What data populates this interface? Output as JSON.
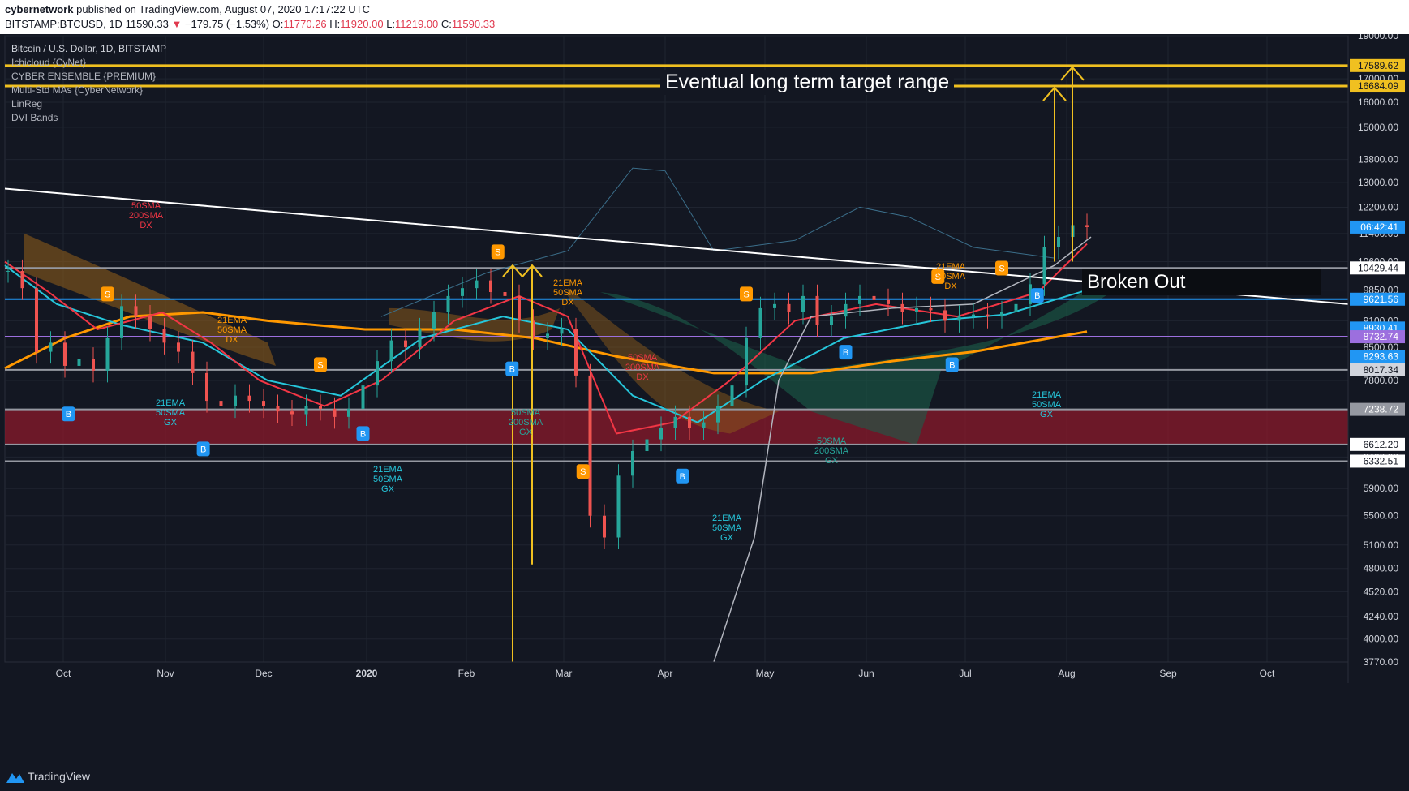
{
  "header": {
    "author": "cybernetwork",
    "published_text": "published on TradingView.com, August 07, 2020 17:17:22 UTC",
    "symbol": "BITSTAMP:BTCUSD, 1D",
    "last": "11590.33",
    "change": "−179.75 (−1.53%)",
    "o_label": "O:",
    "o_value": "11770.26",
    "h_label": "H:",
    "h_value": "11920.00",
    "l_label": "L:",
    "l_value": "11219.00",
    "c_label": "C:",
    "c_value": "11590.33"
  },
  "legend": {
    "title": "Bitcoin / U.S. Dollar, 1D, BITSTAMP",
    "indicators": [
      "Ichicloud {CyNet}",
      "CYBER ENSEMBLE {PREMIUM}",
      "Multi-Std MAs {CyberNetwork}",
      "LinReg",
      "DVI Bands"
    ]
  },
  "annotations": {
    "target_range": "Eventual long term target range",
    "broken_out": "Broken Out"
  },
  "footer": {
    "brand": "TradingView"
  },
  "colors": {
    "background": "#131722",
    "target_line": "#f0c020",
    "trend_line": "#ffffff",
    "blue_level": "#2196f3",
    "purple_level": "#9c6fde",
    "gray_level": "#9598a1",
    "support_zone": "#8b1a2b",
    "cloud_orange": "#8a5a1a",
    "cloud_green": "#1b5e4a",
    "ema21": "#f23645",
    "sma50": "#26c6da",
    "sma200": "#ff9800",
    "up_candle": "#26a69a",
    "down_candle": "#ef5350"
  },
  "chart_data": {
    "type": "candlestick",
    "title": "Bitcoin / U.S. Dollar, 1D, BITSTAMP",
    "y_scale": "log",
    "ylim": [
      3770,
      19000
    ],
    "x_ticks": [
      "Oct",
      "Nov",
      "Dec",
      "2020",
      "Feb",
      "Mar",
      "Apr",
      "May",
      "Jun",
      "Jul",
      "Aug",
      "Sep",
      "Oct"
    ],
    "y_ticks": [
      "19000.00",
      "17000.00",
      "16000.00",
      "15000.00",
      "13800.00",
      "13000.00",
      "12200.00",
      "11400.00",
      "10600.00",
      "9850.00",
      "9100.00",
      "8500.00",
      "7800.00",
      "6400.00",
      "5900.00",
      "5500.00",
      "5100.00",
      "4800.00",
      "4520.00",
      "4240.00",
      "4000.00",
      "3770.00"
    ],
    "price_labels": [
      {
        "text": "17589.62",
        "value": 17589.62,
        "color": "#f0c020"
      },
      {
        "text": "16684.09",
        "value": 16684.09,
        "color": "#f0c020"
      },
      {
        "text": "06:42:41",
        "value": 11590.33,
        "color": "#2196f3"
      },
      {
        "text": "10429.44",
        "value": 10429.44,
        "color": "#ffffff"
      },
      {
        "text": "9621.56",
        "value": 9621.56,
        "color": "#2196f3"
      },
      {
        "text": "8930.41",
        "value": 8930.41,
        "color": "#2196f3"
      },
      {
        "text": "8732.74",
        "value": 8732.74,
        "color": "#9c6fde"
      },
      {
        "text": "8293.63",
        "value": 8293.63,
        "color": "#2196f3"
      },
      {
        "text": "8017.34",
        "value": 8017.34,
        "color": "#d1d4dc"
      },
      {
        "text": "7238.72",
        "value": 7238.72,
        "color": "#9598a1"
      },
      {
        "text": "6612.20",
        "value": 6612.2,
        "color": "#ffffff"
      },
      {
        "text": "6332.51",
        "value": 6332.51,
        "color": "#ffffff"
      }
    ],
    "horizontal_levels": [
      {
        "value": 17589.62,
        "color": "#f0c020"
      },
      {
        "value": 16684.09,
        "color": "#f0c020"
      },
      {
        "value": 10429.44,
        "color": "#9598a1"
      },
      {
        "value": 9621.56,
        "color": "#2196f3"
      },
      {
        "value": 8732.74,
        "color": "#9c6fde"
      },
      {
        "value": 8017.34,
        "color": "#9598a1"
      },
      {
        "value": 7238.72,
        "color": "#9598a1"
      },
      {
        "value": 6612.2,
        "color": "#9598a1"
      },
      {
        "value": 6332.51,
        "color": "#9598a1"
      }
    ],
    "candles": [
      [
        0,
        10350
      ],
      [
        4,
        9900
      ],
      [
        8,
        8400
      ],
      [
        12,
        8600
      ],
      [
        16,
        8100
      ],
      [
        20,
        8250
      ],
      [
        24,
        8000
      ],
      [
        28,
        8700
      ],
      [
        32,
        9450
      ],
      [
        36,
        9200
      ],
      [
        40,
        8900
      ],
      [
        44,
        8600
      ],
      [
        48,
        8400
      ],
      [
        52,
        7950
      ],
      [
        56,
        7400
      ],
      [
        60,
        7300
      ],
      [
        64,
        7500
      ],
      [
        68,
        7400
      ],
      [
        72,
        7300
      ],
      [
        76,
        7200
      ],
      [
        80,
        7150
      ],
      [
        84,
        7300
      ],
      [
        88,
        7250
      ],
      [
        92,
        7100
      ],
      [
        96,
        7250
      ],
      [
        100,
        7700
      ],
      [
        104,
        8200
      ],
      [
        108,
        8650
      ],
      [
        112,
        8500
      ],
      [
        116,
        8900
      ],
      [
        120,
        9300
      ],
      [
        124,
        9700
      ],
      [
        128,
        9900
      ],
      [
        132,
        10100
      ],
      [
        136,
        9800
      ],
      [
        140,
        9700
      ],
      [
        144,
        9100
      ],
      [
        148,
        8700
      ],
      [
        152,
        8800
      ],
      [
        156,
        8900
      ],
      [
        160,
        7900
      ],
      [
        164,
        5500
      ],
      [
        168,
        5200
      ],
      [
        172,
        6100
      ],
      [
        176,
        6500
      ],
      [
        180,
        6700
      ],
      [
        184,
        6900
      ],
      [
        188,
        7100
      ],
      [
        192,
        6900
      ],
      [
        196,
        7000
      ],
      [
        200,
        7300
      ],
      [
        204,
        7700
      ],
      [
        208,
        8700
      ],
      [
        212,
        9400
      ],
      [
        216,
        9500
      ],
      [
        220,
        9300
      ],
      [
        224,
        9700
      ],
      [
        228,
        9000
      ],
      [
        232,
        9200
      ],
      [
        236,
        9500
      ],
      [
        240,
        9700
      ],
      [
        244,
        9600
      ],
      [
        248,
        9500
      ],
      [
        252,
        9300
      ],
      [
        256,
        9400
      ],
      [
        260,
        9350
      ],
      [
        264,
        9100
      ],
      [
        268,
        9200
      ],
      [
        272,
        9250
      ],
      [
        276,
        9200
      ],
      [
        280,
        9300
      ],
      [
        284,
        9500
      ],
      [
        288,
        10000
      ],
      [
        292,
        11000
      ],
      [
        296,
        11300
      ],
      [
        300,
        11650
      ],
      [
        304,
        11590
      ]
    ],
    "signal_labels": [
      {
        "text": "50SMA 200SMA DX",
        "date": "2019-09-22"
      },
      {
        "text": "21EMA 50SMA DX",
        "date": "2019-11-16"
      },
      {
        "text": "21EMA 50SMA GX",
        "date": "2019-11-01"
      },
      {
        "text": "21EMA 50SMA GX",
        "date": "2020-01-01"
      },
      {
        "text": "50SMA 200SMA GX",
        "date": "2020-02-18"
      },
      {
        "text": "21EMA 50SMA DX",
        "date": "2020-02-28"
      },
      {
        "text": "50SMA 200SMA DX",
        "date": "2020-03-27"
      },
      {
        "text": "21EMA 50SMA GX",
        "date": "2020-04-15"
      },
      {
        "text": "50SMA 200SMA GX",
        "date": "2020-05-18"
      },
      {
        "text": "21EMA 50SMA DX",
        "date": "2020-06-27"
      },
      {
        "text": "21EMA 50SMA GX",
        "date": "2020-08-02"
      }
    ],
    "buy_signals": [
      17,
      55,
      100,
      142,
      190,
      236,
      266,
      290
    ],
    "sell_signals": [
      28,
      88,
      138,
      162,
      208,
      262,
      280
    ]
  }
}
